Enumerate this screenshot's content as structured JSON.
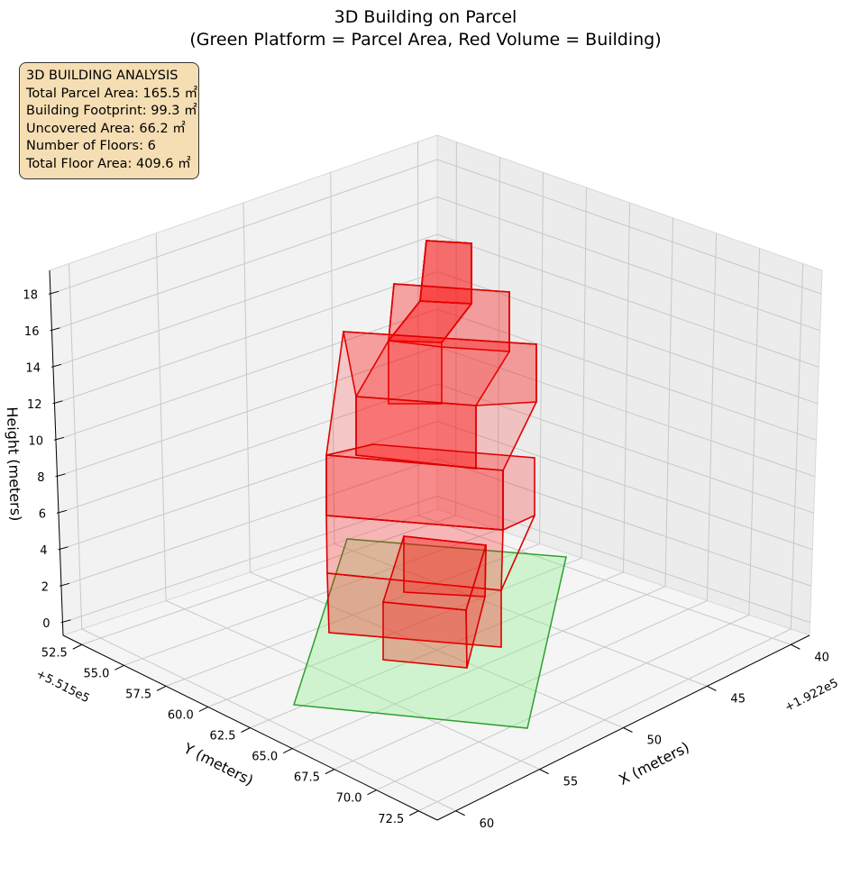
{
  "chart_data": {
    "type": "3d-building",
    "title_line1": "3D Building on Parcel",
    "title_line2": "(Green Platform = Parcel Area, Red Volume = Building)",
    "xlabel": "X (meters)",
    "ylabel": "Y (meters)",
    "zlabel": "Height (meters)",
    "x_offset_label": "+1.922e5",
    "y_offset_label": "+5.515e5",
    "x_ticks": [
      "40",
      "45",
      "50",
      "55",
      "60"
    ],
    "y_ticks": [
      "52.5",
      "55.0",
      "57.5",
      "60.0",
      "62.5",
      "65.0",
      "67.5",
      "70.0",
      "72.5"
    ],
    "z_ticks": [
      "0",
      "2",
      "4",
      "6",
      "8",
      "10",
      "12",
      "14",
      "16",
      "18"
    ],
    "colors": {
      "parcel_fill": "#90ee90",
      "parcel_edge": "#2ca02c",
      "building_fill": "#ff0000",
      "building_edge": "#dd0000",
      "pane": "#f2f2f2",
      "grid": "#c8c8c8"
    }
  },
  "info_box": {
    "heading": "3D BUILDING ANALYSIS",
    "lines": [
      "Total Parcel Area: 165.5 ㎡",
      "Building Footprint: 99.3 ㎡",
      "Uncovered Area: 66.2 ㎡",
      "Number of Floors: 6",
      "Total Floor Area: 409.6 ㎡"
    ]
  }
}
